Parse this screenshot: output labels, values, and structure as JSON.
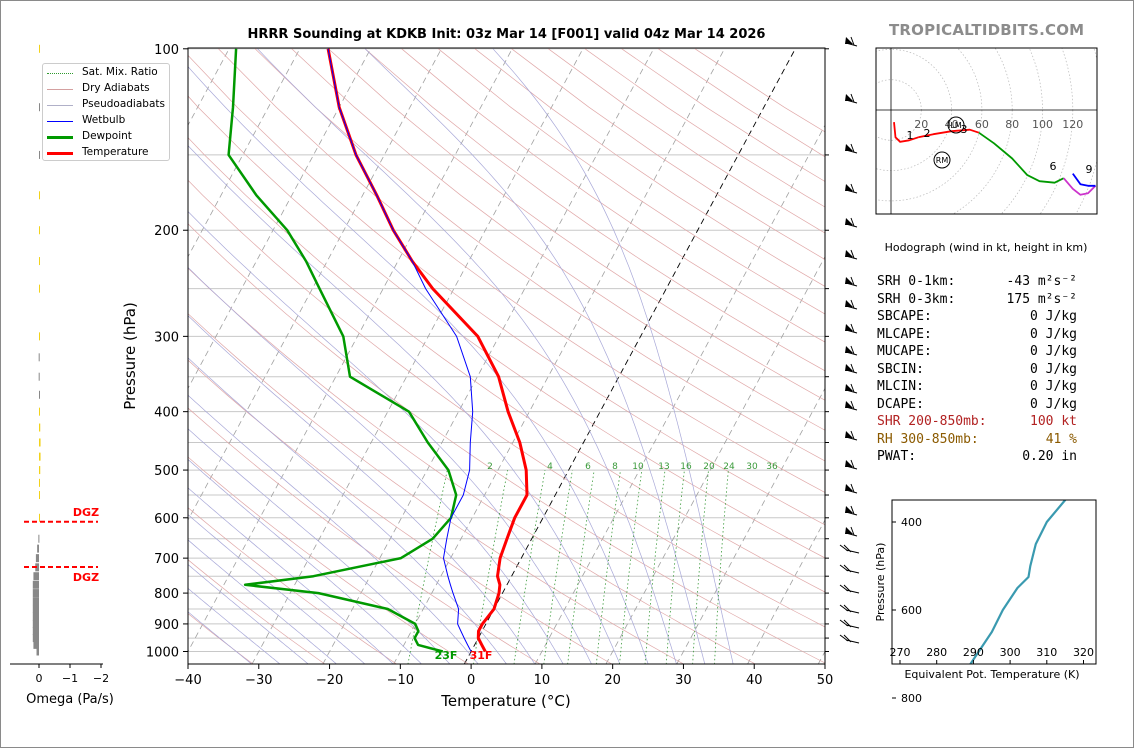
{
  "brand": "TROPICALTIDBITS.COM",
  "title": "HRRR Sounding at KDKB Init: 03z Mar 14 [F001] valid 04z Mar 14 2026",
  "legend": [
    {
      "label": "Sat. Mix. Ratio",
      "color": "#2e9a2e",
      "style": "dotted"
    },
    {
      "label": "Dry Adiabats",
      "color": "#d48a8a",
      "style": "solid"
    },
    {
      "label": "Pseudoadiabats",
      "color": "#9a9acd",
      "style": "solid"
    },
    {
      "label": "Wetbulb",
      "color": "#0000ff",
      "style": "solid"
    },
    {
      "label": "Dewpoint",
      "color": "#009900",
      "style": "thick"
    },
    {
      "label": "Temperature",
      "color": "#ff0000",
      "style": "thick"
    }
  ],
  "skewt": {
    "xlabel": "Temperature (°C)",
    "ylabel": "Pressure (hPa)",
    "x_ticks": [
      "−40",
      "−30",
      "−20",
      "−10",
      "0",
      "10",
      "20",
      "30",
      "40",
      "50"
    ],
    "y_ticks": [
      "100",
      "200",
      "300",
      "400",
      "500",
      "600",
      "700",
      "800",
      "900",
      "1000"
    ],
    "mixing_ratio_labels": [
      "2",
      "4",
      "6",
      "8",
      "10",
      "13",
      "16",
      "20",
      "24",
      "30",
      "36"
    ],
    "surface_dewpoint_label": "23F",
    "surface_temp_label": "31F"
  },
  "omega": {
    "xlabel": "Omega (Pa/s)",
    "x_ticks": [
      "0",
      "−1",
      "−2"
    ],
    "dgz_label_top": "DGZ",
    "dgz_label_bottom": "DGZ"
  },
  "hodograph": {
    "caption": "Hodograph (wind in kt, height in km)",
    "ring_labels": [
      "20",
      "40",
      "60",
      "80",
      "100",
      "120"
    ],
    "height_labels": [
      "1",
      "2",
      "3",
      "6",
      "9"
    ],
    "storm_labels": [
      "LM",
      "RM"
    ]
  },
  "theta_e": {
    "xlabel": "Equivalent Pot. Temperature (K)",
    "ylabel": "Pressure (hPa)",
    "x_ticks": [
      "270",
      "280",
      "290",
      "300",
      "310",
      "320"
    ],
    "y_ticks": [
      "400",
      "600",
      "800"
    ]
  },
  "stats": [
    {
      "label": "SRH 0-1km:",
      "value": "-43 m²s⁻²",
      "tone": "normal"
    },
    {
      "label": "SRH 0-3km:",
      "value": "175 m²s⁻²",
      "tone": "normal"
    },
    {
      "label": "SBCAPE:",
      "value": "0 J/kg",
      "tone": "normal"
    },
    {
      "label": "MLCAPE:",
      "value": "0 J/kg",
      "tone": "normal"
    },
    {
      "label": "MUCAPE:",
      "value": "0 J/kg",
      "tone": "normal"
    },
    {
      "label": "SBCIN:",
      "value": "0 J/kg",
      "tone": "normal"
    },
    {
      "label": "MLCIN:",
      "value": "0 J/kg",
      "tone": "normal"
    },
    {
      "label": "DCAPE:",
      "value": "0 J/kg",
      "tone": "normal"
    },
    {
      "label": "SHR 200-850mb:",
      "value": "100 kt",
      "tone": "red"
    },
    {
      "label": "RH 300-850mb:",
      "value": "41 %",
      "tone": "brown"
    },
    {
      "label": "PWAT:",
      "value": "0.20 in",
      "tone": "normal"
    }
  ],
  "colors": {
    "temperature": "#ff0000",
    "dewpoint": "#009900",
    "wetbulb": "#0000ff",
    "theta_e": "#3a9ab0",
    "omega_positive": "#f2d21a",
    "omega_negative": "#888888",
    "dgz": "#ff0000"
  },
  "chart_data": [
    {
      "type": "line",
      "name": "skew-t",
      "xlabel": "Temperature (°C)",
      "ylabel": "Pressure (hPa)",
      "xlim": [
        -40,
        50
      ],
      "ylim": [
        1050,
        100
      ],
      "y_scale": "log",
      "series": [
        {
          "name": "Temperature",
          "points": [
            [
              1000,
              2
            ],
            [
              975,
              1
            ],
            [
              950,
              0
            ],
            [
              925,
              -0.5
            ],
            [
              900,
              -0.5
            ],
            [
              850,
              0
            ],
            [
              800,
              -0.5
            ],
            [
              775,
              -1
            ],
            [
              750,
              -2
            ],
            [
              700,
              -3
            ],
            [
              650,
              -3.5
            ],
            [
              600,
              -4
            ],
            [
              550,
              -4
            ],
            [
              500,
              -6
            ],
            [
              450,
              -9
            ],
            [
              400,
              -13
            ],
            [
              350,
              -17
            ],
            [
              300,
              -23
            ],
            [
              250,
              -33
            ],
            [
              225,
              -38
            ],
            [
              200,
              -43
            ],
            [
              175,
              -48
            ],
            [
              150,
              -54
            ],
            [
              125,
              -60
            ],
            [
              100,
              -66
            ]
          ]
        },
        {
          "name": "Dewpoint",
          "points": [
            [
              1000,
              -4
            ],
            [
              975,
              -8
            ],
            [
              950,
              -9
            ],
            [
              925,
              -9
            ],
            [
              900,
              -10
            ],
            [
              850,
              -15
            ],
            [
              800,
              -26
            ],
            [
              775,
              -37
            ],
            [
              750,
              -28
            ],
            [
              700,
              -17
            ],
            [
              650,
              -14
            ],
            [
              600,
              -13
            ],
            [
              550,
              -14
            ],
            [
              500,
              -17
            ],
            [
              450,
              -22
            ],
            [
              400,
              -27
            ],
            [
              350,
              -38
            ],
            [
              300,
              -42
            ],
            [
              250,
              -49
            ],
            [
              225,
              -53
            ],
            [
              200,
              -58
            ],
            [
              175,
              -65
            ],
            [
              150,
              -72
            ],
            [
              125,
              -75
            ],
            [
              100,
              -79
            ]
          ]
        },
        {
          "name": "Wetbulb",
          "points": [
            [
              1000,
              0
            ],
            [
              975,
              -1
            ],
            [
              950,
              -2
            ],
            [
              925,
              -3
            ],
            [
              900,
              -4
            ],
            [
              850,
              -5
            ],
            [
              800,
              -7
            ],
            [
              775,
              -8
            ],
            [
              750,
              -9
            ],
            [
              700,
              -11
            ],
            [
              650,
              -12
            ],
            [
              600,
              -13
            ],
            [
              550,
              -13
            ],
            [
              500,
              -14
            ],
            [
              450,
              -16
            ],
            [
              400,
              -18
            ],
            [
              350,
              -21
            ],
            [
              300,
              -26
            ],
            [
              250,
              -34
            ],
            [
              225,
              -38
            ],
            [
              200,
              -43
            ],
            [
              175,
              -48
            ],
            [
              150,
              -54
            ],
            [
              125,
              -60
            ],
            [
              100,
              -66
            ]
          ]
        }
      ]
    },
    {
      "type": "line",
      "name": "theta-e",
      "xlabel": "Equivalent Pot. Temperature (K)",
      "ylabel": "Pressure (hPa)",
      "xlim": [
        269,
        323
      ],
      "ylim": [
        1000,
        300
      ],
      "series": [
        {
          "name": "Theta-E",
          "points": [
            [
              975,
              281
            ],
            [
              950,
              281.5
            ],
            [
              900,
              282.5
            ],
            [
              850,
              283.5
            ],
            [
              800,
              285
            ],
            [
              750,
              287
            ],
            [
              700,
              291
            ],
            [
              650,
              295
            ],
            [
              600,
              298
            ],
            [
              550,
              302
            ],
            [
              525,
              305
            ],
            [
              500,
              305.5
            ],
            [
              450,
              307
            ],
            [
              400,
              310
            ],
            [
              350,
              315
            ],
            [
              300,
              319
            ]
          ]
        }
      ]
    },
    {
      "type": "line",
      "name": "hodograph",
      "xlim": [
        -10,
        140
      ],
      "ylim": [
        -80,
        50
      ],
      "series": [
        {
          "name": "0-1 km",
          "points": [
            [
              2,
              -8
            ],
            [
              3,
              -18
            ],
            [
              6,
              -21
            ],
            [
              12,
              -20
            ],
            [
              18,
              -18
            ]
          ]
        },
        {
          "name": "1-3 km",
          "points": [
            [
              18,
              -18
            ],
            [
              28,
              -16
            ],
            [
              40,
              -14
            ],
            [
              52,
              -13
            ],
            [
              58,
              -15
            ]
          ]
        },
        {
          "name": "3-6 km",
          "points": [
            [
              58,
              -15
            ],
            [
              68,
              -22
            ],
            [
              80,
              -32
            ],
            [
              90,
              -43
            ],
            [
              98,
              -47
            ],
            [
              108,
              -48
            ],
            [
              114,
              -45
            ]
          ]
        },
        {
          "name": "6-9 km",
          "points": [
            [
              114,
              -45
            ],
            [
              120,
              -52
            ],
            [
              125,
              -56
            ],
            [
              130,
              -55
            ],
            [
              135,
              -50
            ]
          ]
        },
        {
          "name": "9+ km",
          "points": [
            [
              135,
              -50
            ],
            [
              130,
              -50
            ],
            [
              125,
              -49
            ],
            [
              120,
              -42
            ]
          ]
        }
      ],
      "storm_motion": {
        "LM": [
          46,
          -10
        ],
        "RM": [
          35,
          -38
        ]
      }
    },
    {
      "type": "bar",
      "name": "omega",
      "xlabel": "Omega (Pa/s)",
      "xlim": [
        0.4,
        -2.1
      ],
      "series": [
        {
          "name": "Omega",
          "points": [
            [
              1000,
              -0.08
            ],
            [
              975,
              -0.18
            ],
            [
              950,
              -0.2
            ],
            [
              925,
              -0.2
            ],
            [
              900,
              -0.2
            ],
            [
              875,
              -0.2
            ],
            [
              850,
              -0.2
            ],
            [
              825,
              -0.2
            ],
            [
              800,
              -0.2
            ],
            [
              775,
              -0.2
            ],
            [
              750,
              -0.18
            ],
            [
              725,
              -0.12
            ],
            [
              700,
              -0.1
            ],
            [
              675,
              -0.06
            ],
            [
              650,
              -0.02
            ],
            [
              600,
              0.03
            ],
            [
              550,
              0.03
            ],
            [
              525,
              0.03
            ],
            [
              500,
              0.04
            ],
            [
              475,
              0.05
            ],
            [
              450,
              0.05
            ],
            [
              425,
              0.04
            ],
            [
              400,
              0.02
            ],
            [
              375,
              0
            ],
            [
              350,
              -0.01
            ],
            [
              325,
              -0.01
            ],
            [
              300,
              0.01
            ],
            [
              250,
              0.01
            ],
            [
              225,
              0.01
            ],
            [
              200,
              0.02
            ],
            [
              175,
              0.02
            ],
            [
              150,
              0
            ],
            [
              125,
              0
            ],
            [
              100,
              0.01
            ]
          ]
        }
      ],
      "dgz_pressures": [
        609,
        724
      ]
    }
  ]
}
